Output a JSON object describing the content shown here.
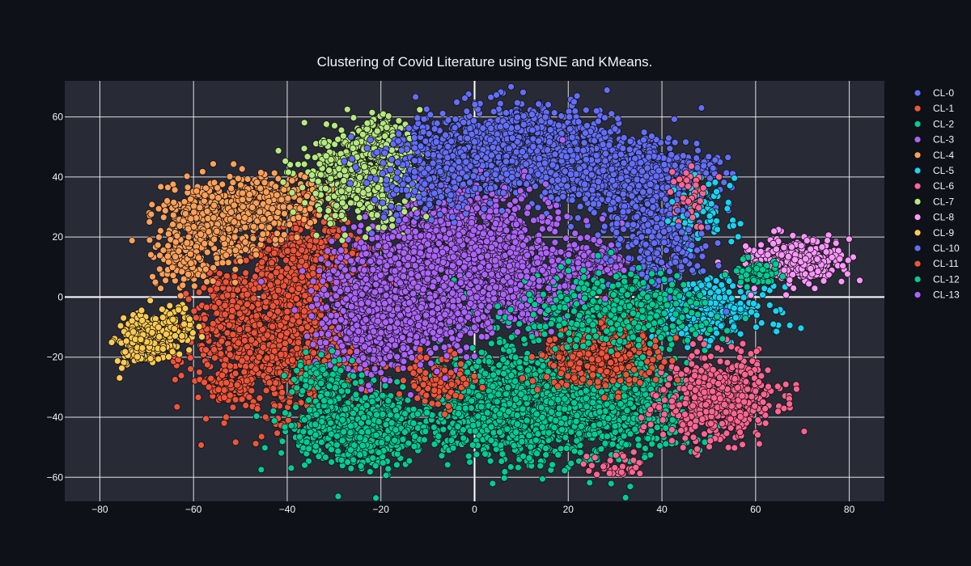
{
  "chart_data": {
    "type": "scatter",
    "title": "Clustering of Covid Literature using tSNE and KMeans.",
    "xlabel": "",
    "ylabel": "",
    "xlim": [
      -87.5,
      87.5
    ],
    "ylim": [
      -68,
      72
    ],
    "x_ticks": [
      -80,
      -60,
      -40,
      -20,
      0,
      20,
      40,
      60,
      80
    ],
    "y_ticks": [
      -60,
      -40,
      -20,
      0,
      20,
      40,
      60
    ],
    "grid": true,
    "legend_position": "right",
    "plot_background": "#282a36",
    "marker_outline": "#111111",
    "series": [
      {
        "name": "CL-0",
        "color": "#636efa",
        "clusters": [
          [
            12,
            50,
            9,
            7,
            900
          ],
          [
            28,
            42,
            8,
            6,
            600
          ],
          [
            -14,
            52,
            2,
            3,
            40
          ],
          [
            38,
            30,
            7,
            9,
            350
          ],
          [
            43,
            44,
            4,
            2,
            120
          ]
        ]
      },
      {
        "name": "CL-1",
        "color": "#ef553b",
        "clusters": [
          [
            -42,
            -14,
            9,
            12,
            1100
          ],
          [
            -37,
            12,
            6,
            9,
            450
          ],
          [
            -52,
            0,
            3,
            5,
            120
          ],
          [
            -53,
            -30,
            2,
            2,
            60
          ],
          [
            -22,
            -2,
            3,
            10,
            80
          ]
        ]
      },
      {
        "name": "CL-2",
        "color": "#00cc96",
        "clusters": [
          [
            -25,
            -44,
            7,
            6,
            700
          ],
          [
            8,
            -36,
            10,
            9,
            1100
          ],
          [
            28,
            -34,
            9,
            9,
            900
          ],
          [
            -5,
            2,
            8,
            8,
            80
          ]
        ]
      },
      {
        "name": "CL-3",
        "color": "#ab63fa",
        "clusters": [
          [
            -20,
            -5,
            7,
            10,
            800
          ],
          [
            -4,
            22,
            10,
            10,
            900
          ],
          [
            12,
            2,
            7,
            7,
            300
          ],
          [
            22,
            12,
            6,
            3,
            150
          ]
        ]
      },
      {
        "name": "CL-4",
        "color": "#ffa15a",
        "clusters": [
          [
            -55,
            26,
            6,
            6,
            500
          ],
          [
            -42,
            32,
            6,
            4,
            250
          ],
          [
            -62,
            12,
            3,
            4,
            120
          ]
        ]
      },
      {
        "name": "CL-5",
        "color": "#19d3f3",
        "clusters": [
          [
            48,
            -4,
            7,
            5,
            350
          ],
          [
            48,
            28,
            3,
            5,
            90
          ]
        ]
      },
      {
        "name": "CL-6",
        "color": "#ff6692",
        "clusters": [
          [
            52,
            -34,
            6,
            7,
            550
          ],
          [
            46,
            34,
            2,
            5,
            40
          ],
          [
            30,
            -56,
            3,
            2,
            40
          ]
        ]
      },
      {
        "name": "CL-7",
        "color": "#b6e880",
        "clusters": [
          [
            -24,
            40,
            6,
            7,
            600
          ],
          [
            -20,
            52,
            3,
            4,
            150
          ]
        ]
      },
      {
        "name": "CL-8",
        "color": "#ff97ff",
        "clusters": [
          [
            68,
            12,
            5,
            4,
            350
          ]
        ]
      },
      {
        "name": "CL-9",
        "color": "#fecb52",
        "clusters": [
          [
            -70,
            -14,
            3,
            4,
            300
          ],
          [
            -64,
            -10,
            2,
            3,
            80
          ]
        ]
      },
      {
        "name": "CL-10",
        "color": "#636efa",
        "clusters": [
          [
            -6,
            44,
            8,
            8,
            400
          ],
          [
            40,
            16,
            5,
            6,
            150
          ]
        ]
      },
      {
        "name": "CL-11",
        "color": "#ef553b",
        "clusters": [
          [
            26,
            -20,
            6,
            5,
            350
          ],
          [
            32,
            -8,
            3,
            4,
            120
          ],
          [
            -8,
            -28,
            4,
            4,
            100
          ]
        ]
      },
      {
        "name": "CL-12",
        "color": "#00cc96",
        "clusters": [
          [
            30,
            -4,
            10,
            6,
            400
          ],
          [
            60,
            8,
            3,
            2,
            60
          ],
          [
            -32,
            -28,
            3,
            4,
            100
          ]
        ]
      },
      {
        "name": "CL-13",
        "color": "#ab63fa",
        "clusters": [
          [
            -10,
            0,
            8,
            9,
            500
          ],
          [
            6,
            12,
            5,
            5,
            200
          ]
        ]
      }
    ]
  }
}
